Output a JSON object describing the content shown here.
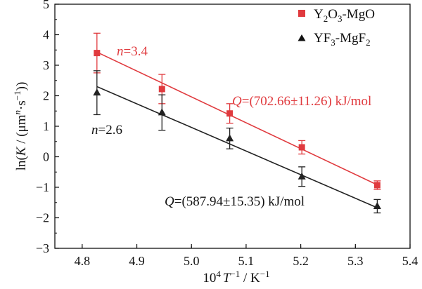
{
  "chart_data": {
    "type": "scatter",
    "xlabel": {
      "pre": "10",
      "pre_sup": "4",
      "var": "T",
      "var_sup": "−1",
      "post": " / K",
      "post_sup": "−1"
    },
    "ylabel": {
      "a": "ln(",
      "b": "K",
      "c": " / (μm",
      "d": "n",
      "e": "·s",
      "f": "−1",
      "g": "))"
    },
    "xlim": [
      4.75,
      5.4
    ],
    "ylim": [
      -3,
      5
    ],
    "x_ticks": [
      "4.8",
      "4.9",
      "5.0",
      "5.1",
      "5.2",
      "5.3",
      "5.4"
    ],
    "y_ticks": [
      "5",
      "4",
      "3",
      "2",
      "1",
      "0",
      "−1",
      "−2",
      "−3"
    ],
    "grid": false,
    "legend_position": "top-right",
    "series": [
      {
        "name": "Y2O3-MgO",
        "legend": {
          "a": "Y",
          "b": "2",
          "c": "O",
          "d": "3",
          "e": "-MgO"
        },
        "marker": "square",
        "color": "#e03a3e",
        "x": [
          4.827,
          4.946,
          5.07,
          5.202,
          5.34
        ],
        "y": [
          3.4,
          2.22,
          1.42,
          0.31,
          -0.93
        ],
        "err": [
          0.65,
          0.48,
          0.32,
          0.22,
          0.14
        ],
        "fit": {
          "x": [
            4.827,
            5.34
          ],
          "y": [
            3.43,
            -0.92
          ]
        },
        "n_label": {
          "n": "n",
          "value": "=3.4"
        },
        "q_label": "(702.66±11.26) kJ/mol",
        "q_symbol": "Q"
      },
      {
        "name": "YF3-MgF2",
        "legend": {
          "a": "YF",
          "b": "3",
          "c": "-MgF",
          "d": "2",
          "e": ""
        },
        "marker": "triangle",
        "color": "#222222",
        "x": [
          4.827,
          4.946,
          5.07,
          5.202,
          5.34
        ],
        "y": [
          2.1,
          1.45,
          0.6,
          -0.65,
          -1.62
        ],
        "err": [
          0.72,
          0.58,
          0.34,
          0.32,
          0.22
        ],
        "fit": {
          "x": [
            4.827,
            5.34
          ],
          "y": [
            2.3,
            -1.67
          ]
        },
        "n_label": {
          "n": "n",
          "value": "=2.6"
        },
        "q_label": "(587.94±15.35) kJ/mol",
        "q_symbol": "Q"
      }
    ]
  }
}
